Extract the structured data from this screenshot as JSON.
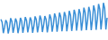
{
  "chart_data": {
    "type": "line",
    "color": "#3a8fd6",
    "values": [
      52,
      44,
      14,
      30,
      50,
      43,
      13,
      29,
      55,
      46,
      15,
      32,
      54,
      45,
      14,
      31,
      56,
      47,
      15,
      33,
      58,
      49,
      16,
      34,
      57,
      48,
      15,
      33,
      60,
      51,
      16,
      35,
      62,
      52,
      17,
      36,
      61,
      52,
      16,
      36,
      65,
      55,
      18,
      38,
      68,
      57,
      18,
      40,
      70,
      59,
      19,
      41,
      72,
      61,
      19,
      42,
      75,
      63,
      20,
      44,
      78,
      66,
      21,
      46,
      80,
      68,
      21,
      47,
      84,
      71,
      22,
      49,
      86,
      73,
      22,
      50,
      90,
      76,
      23,
      52,
      94,
      80,
      24,
      54,
      97,
      82,
      24,
      56
    ],
    "ylim": [
      0,
      100
    ],
    "grid": false,
    "tick_labels": false
  }
}
